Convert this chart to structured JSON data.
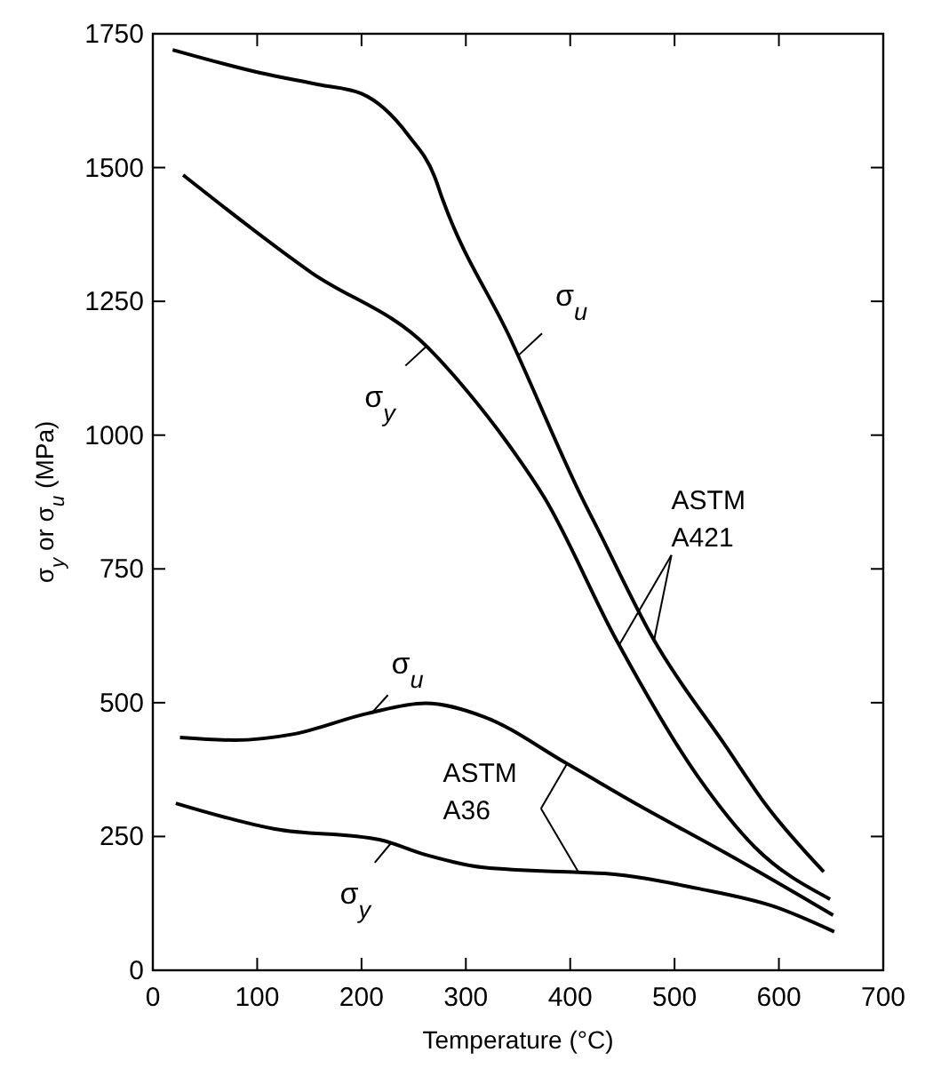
{
  "chart_data": {
    "type": "line",
    "xlabel": "Temperature (°C)",
    "ylabel": "σ$_{y}$ or σ$_{u}$ (MPa)",
    "xlim": [
      0,
      700
    ],
    "xticks": [
      0,
      100,
      200,
      300,
      400,
      500,
      600,
      700
    ],
    "ylim": [
      0,
      1750
    ],
    "yticks": [
      0,
      250,
      500,
      750,
      1000,
      1250,
      1500,
      1750
    ],
    "grid": false,
    "marker": "none",
    "line_style": "solid",
    "annotations": [
      {
        "text": "ASTM A421",
        "x": 480,
        "y": 613
      },
      {
        "text": "ASTM A36",
        "x": 397,
        "y": 386
      }
    ],
    "series": [
      {
        "name": "σ$_{u}$",
        "color": "#000000",
        "x": [
          19,
          103,
          159,
          200,
          245,
          270,
          278,
          342,
          411,
          427,
          480,
          549,
          588,
          643
        ],
        "values": [
          1720,
          1677,
          1655,
          1638,
          1560,
          1483,
          1439,
          1183,
          884,
          822,
          618,
          419,
          308,
          184
        ]
      },
      {
        "name": "σ$_{y}$",
        "color": "#000000",
        "x": [
          29,
          151,
          264,
          300,
          340,
          375,
          444,
          522,
          577,
          649
        ],
        "values": [
          1486,
          1305,
          1163,
          1085,
          985,
          884,
          618,
          363,
          230,
          133
        ]
      },
      {
        "name": "σ$_{u}$",
        "color": "#000000",
        "x": [
          26,
          79,
          134,
          206,
          261,
          317,
          397,
          466,
          549,
          652
        ],
        "values": [
          435,
          430,
          441,
          480,
          499,
          474,
          386,
          308,
          219,
          103
        ]
      },
      {
        "name": "σ$_{y}$",
        "color": "#000000",
        "x": [
          22,
          117,
          217,
          261,
          317,
          408,
          433,
          522,
          594,
          653
        ],
        "values": [
          312,
          264,
          244,
          216,
          192,
          183,
          181,
          153,
          120,
          72
        ]
      }
    ]
  }
}
